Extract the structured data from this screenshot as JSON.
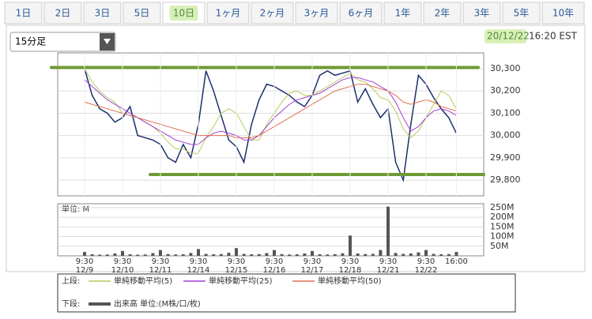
{
  "tabs": [
    "1日",
    "2日",
    "3日",
    "5日",
    "10日",
    "1ヶ月",
    "2ヶ月",
    "3ヶ月",
    "6ヶ月",
    "1年",
    "2年",
    "3年",
    "5年",
    "10年"
  ],
  "selected_tab": 4,
  "interval": "15分足",
  "date": "20/12/22",
  "time": "16:20 EST",
  "legend": {
    "upper": "上段:",
    "lower": "下段:"
  },
  "chart_data": [
    {
      "type": "line",
      "series": [
        {
          "color": "#1c2f6e",
          "values": [
            30300,
            30180,
            30120,
            30100,
            30060,
            30080,
            30130,
            30000,
            29990,
            29980,
            29960,
            29900,
            29880,
            29960,
            29900,
            30050,
            30290,
            30200,
            30090,
            29980,
            29950,
            29880,
            30050,
            30160,
            30230,
            30220,
            30200,
            30180,
            30150,
            30130,
            30180,
            30270,
            30290,
            30270,
            30280,
            30290,
            30150,
            30210,
            30140,
            30080,
            30120,
            29880,
            29800,
            30050,
            30270,
            30230,
            30170,
            30120,
            30080,
            30010
          ]
        },
        {
          "name": "単純移動平均(5)",
          "color": "#b5cc5a",
          "values": [
            30300,
            30240,
            30200,
            30170,
            30150,
            30100,
            30090,
            30080,
            30060,
            30040,
            30010,
            29970,
            29940,
            29940,
            29920,
            29920,
            29990,
            30040,
            30100,
            30120,
            30100,
            30040,
            29980,
            29980,
            30050,
            30100,
            30150,
            30190,
            30200,
            30180,
            30180,
            30200,
            30220,
            30240,
            30260,
            30280,
            30250,
            30240,
            30210,
            30170,
            30160,
            30110,
            30030,
            29990,
            30020,
            30080,
            30140,
            30200,
            30180,
            30120
          ]
        },
        {
          "name": "単純移動平均(25)",
          "color": "#a040d0",
          "values": [
            30250,
            30220,
            30190,
            30160,
            30140,
            30120,
            30100,
            30080,
            30060,
            30040,
            30020,
            30000,
            29980,
            29970,
            29960,
            29960,
            29990,
            30010,
            30020,
            30010,
            30000,
            29980,
            29980,
            30000,
            30040,
            30080,
            30110,
            30140,
            30160,
            30170,
            30180,
            30190,
            30210,
            30230,
            30250,
            30260,
            30260,
            30250,
            30240,
            30220,
            30200,
            30150,
            30080,
            30020,
            30040,
            30080,
            30110,
            30120,
            30110,
            30090
          ]
        },
        {
          "name": "単純移動平均(50)",
          "color": "#e07050",
          "values": [
            30150,
            30140,
            30130,
            30120,
            30110,
            30100,
            30090,
            30080,
            30070,
            30060,
            30050,
            30040,
            30030,
            30020,
            30010,
            30000,
            30000,
            30000,
            30000,
            30000,
            29990,
            29990,
            29990,
            30000,
            30020,
            30040,
            30060,
            30080,
            30100,
            30120,
            30140,
            30160,
            30180,
            30200,
            30210,
            30220,
            30230,
            30230,
            30220,
            30210,
            30200,
            30180,
            30150,
            30140,
            30150,
            30160,
            30150,
            30130,
            30120,
            30110
          ]
        }
      ],
      "ylim": [
        29740,
        30360
      ],
      "yticks": [
        {
          "value": 29800,
          "label": "29,800"
        },
        {
          "value": 29900,
          "label": "29,900"
        },
        {
          "value": 30000,
          "label": "30,000"
        },
        {
          "value": 30100,
          "label": "30,100"
        },
        {
          "value": 30200,
          "label": "30,200"
        },
        {
          "value": 30300,
          "label": "30,300"
        }
      ],
      "guide_lines": [
        {
          "value": 30305,
          "color": "#6f9a33"
        },
        {
          "value": 29825,
          "color": "#6f9a33"
        }
      ],
      "grid": true
    },
    {
      "type": "bar",
      "unit_label": "単位: M",
      "categories": [
        "9:30 12/9",
        null,
        null,
        null,
        null,
        "9:30 12/10",
        null,
        null,
        null,
        null,
        "9:30 12/11",
        null,
        null,
        null,
        null,
        "9:30 12/14",
        null,
        null,
        null,
        null,
        "9:30 12/15",
        null,
        null,
        null,
        null,
        "9:30 12/16",
        null,
        null,
        null,
        null,
        "9:30 12/17",
        null,
        null,
        null,
        null,
        "9:30 12/18",
        null,
        null,
        null,
        null,
        "9:30 12/21",
        null,
        null,
        null,
        null,
        "9:30 12/22",
        null,
        null,
        null,
        "16:00"
      ],
      "series": [
        {
          "name": "出来高 単位:(M株/口/枚)",
          "color": "#555555",
          "values": [
            20,
            8,
            6,
            7,
            12,
            25,
            8,
            6,
            7,
            14,
            30,
            9,
            7,
            8,
            15,
            35,
            10,
            8,
            9,
            16,
            40,
            10,
            8,
            9,
            14,
            30,
            9,
            7,
            8,
            12,
            25,
            8,
            7,
            8,
            13,
            105,
            12,
            9,
            10,
            30,
            255,
            15,
            10,
            12,
            18,
            30,
            10,
            8,
            9,
            20
          ]
        }
      ],
      "ylim": [
        0,
        270
      ],
      "yticks": [
        {
          "value": 50,
          "label": "50M"
        },
        {
          "value": 100,
          "label": "100M"
        },
        {
          "value": 150,
          "label": "150M"
        },
        {
          "value": 200,
          "label": "200M"
        },
        {
          "value": 250,
          "label": "250M"
        }
      ],
      "grid": true
    }
  ]
}
